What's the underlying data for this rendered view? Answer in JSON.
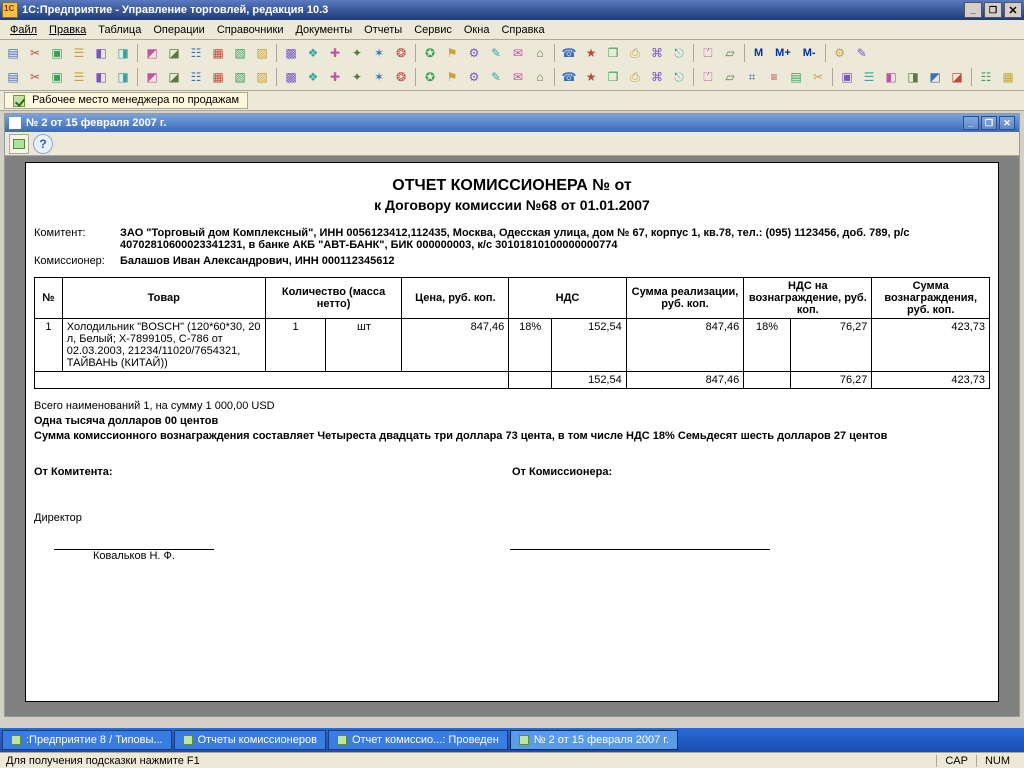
{
  "app": {
    "title": "1С:Предприятие - Управление торговлей, редакция 10.3",
    "window_buttons": {
      "min": "_",
      "max": "❐",
      "restore": "❐",
      "close": "✕"
    }
  },
  "menu": [
    "Файл",
    "Правка",
    "Таблица",
    "Операции",
    "Справочники",
    "Документы",
    "Отчеты",
    "Сервис",
    "Окна",
    "Справка"
  ],
  "tab_strip": {
    "label": "Рабочее место менеджера по продажам"
  },
  "toolbar_text": {
    "m": "M",
    "mplus": "M+",
    "mminus": "M-"
  },
  "doc_window": {
    "title": "№ 2 от 15 февраля 2007 г.",
    "buttons": {
      "min": "_",
      "max": "❐",
      "close": "✕"
    }
  },
  "report": {
    "title1": "ОТЧЕТ КОМИССИОНЕРА №  от",
    "title2": "к Договору комиссии №68 от 01.01.2007",
    "labels": {
      "komitent": "Комитент:",
      "komissioner": "Комиссионер:"
    },
    "komitent": "ЗАО \"Торговый дом Комплексный\", ИНН 0056123412,112435, Москва, Одесская улица, дом № 67, корпус 1, кв.78, тел.: (095) 1123456, доб. 789, р/с 40702810600023341231, в банке АКБ \"АВТ-БАНК\", БИК 000000003, к/с 30101810100000000774",
    "komissioner": "Балашов Иван Александрович, ИНН 000112345612",
    "columns": [
      "№",
      "Товар",
      "Количество (масса нетто)",
      "Цена, руб. коп.",
      "НДС",
      "Сумма реализации, руб. коп.",
      "НДС на вознаграждение, руб. коп.",
      "Сумма вознаграждения, руб. коп."
    ],
    "row": {
      "n": "1",
      "tovar": "Холодильник \"BOSCH\" (120*60*30, 20 л, Белый; X-7899105, C-786 от 02.03.2003, 21234/11020/7654321, ТАЙВАНЬ (КИТАЙ))",
      "qty": "1",
      "unit": "шт",
      "price": "847,46",
      "nds_pct": "18%",
      "nds_sum": "152,54",
      "sum_real": "847,46",
      "nds_vozn_pct": "18%",
      "nds_vozn_sum": "76,27",
      "sum_vozn": "423,73"
    },
    "totals": {
      "nds_sum": "152,54",
      "sum_real": "847,46",
      "nds_vozn_sum": "76,27",
      "sum_vozn": "423,73"
    },
    "summary_line1": "Всего наименований 1, на сумму 1 000,00 USD",
    "summary_line2": "Одна тысяча долларов 00 центов",
    "summary_line3": "Сумма комиссионного вознаграждения составляет Четыреста двадцать три доллара 73 цента, в том числе НДС 18% Семьдесят шесть долларов 27 центов",
    "sig_left": "От Комитента:",
    "sig_right": "От Комиссионера:",
    "director_label": "Директор",
    "director_name": "Ковальков  Н. Ф."
  },
  "taskbar": [
    ":Предприятие 8 / Типовы...",
    "Отчеты комиссионеров",
    "Отчет комиссио...: Проведен",
    "№ 2 от 15 февраля 2007 г."
  ],
  "statusbar": {
    "hint": "Для получения подсказки нажмите F1",
    "cap": "CAP",
    "num": "NUM"
  },
  "colors": {
    "toolbar_icons": [
      "#3a70c0",
      "#c04a3a",
      "#3aa055",
      "#c7a23a",
      "#7a55c0",
      "#3aa5a5",
      "#c055a0",
      "#5a7a40"
    ]
  }
}
